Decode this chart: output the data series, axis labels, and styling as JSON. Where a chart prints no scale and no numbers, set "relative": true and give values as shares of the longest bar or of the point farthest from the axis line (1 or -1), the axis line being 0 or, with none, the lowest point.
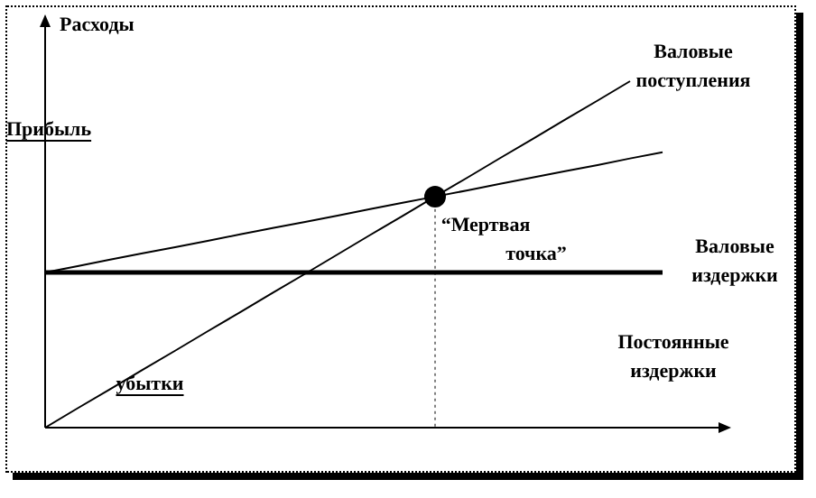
{
  "chart_data": {
    "type": "line",
    "relative": true,
    "ylabel": "Расходы",
    "tick_labels": false,
    "grid": false,
    "legend": false,
    "marker": "none",
    "categories": [
      null,
      null,
      null,
      null,
      null,
      null,
      null,
      null,
      null,
      null,
      null,
      null,
      null,
      null,
      null,
      null,
      null,
      null,
      null,
      null
    ],
    "series": [
      {
        "color": "#000000",
        "values": [
          0,
          0.056,
          0.111,
          0.167,
          0.222,
          0.278,
          0.333,
          0.389,
          0.444,
          0.5,
          0.556,
          0.611,
          0.667,
          0.722,
          0.778,
          0.833,
          0.889,
          0.944,
          1,
          null
        ]
      },
      {
        "color": "#000000",
        "values": [
          0.448,
          0.466,
          0.485,
          0.503,
          0.521,
          0.539,
          0.558,
          0.576,
          0.594,
          0.612,
          0.631,
          0.649,
          0.667,
          0.685,
          0.704,
          0.722,
          0.74,
          0.758,
          0.777,
          0.795
        ]
      },
      {
        "color": "#000000",
        "values": [
          0.448,
          0.448,
          0.448,
          0.448,
          0.448,
          0.448,
          0.448,
          0.448,
          0.448,
          0.448,
          0.448,
          0.448,
          0.448,
          0.448,
          0.448,
          0.448,
          0.448,
          0.448,
          0.448,
          0.448
        ]
      }
    ],
    "annotations": [
      "Валовые поступления",
      "Прибыль",
      "“Мертвая точка”",
      "Валовые издержки",
      "Постоянные издержки",
      "убытки"
    ]
  }
}
